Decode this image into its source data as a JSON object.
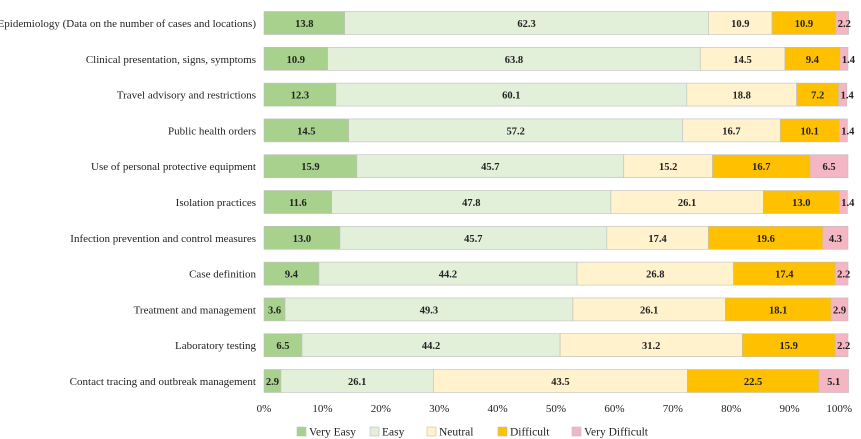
{
  "chart_data": {
    "type": "bar",
    "orientation": "horizontal",
    "stacked": true,
    "percent_stacked": true,
    "title": "",
    "xlabel": "",
    "ylabel": "",
    "xlim": [
      0,
      100
    ],
    "x_ticks": [
      "0%",
      "10%",
      "20%",
      "30%",
      "40%",
      "50%",
      "60%",
      "70%",
      "80%",
      "90%",
      "100%"
    ],
    "grid": false,
    "legend_position": "bottom",
    "categories": [
      "Epidemiology (Data on the number of cases and locations)",
      "Clinical presentation, signs, symptoms",
      "Travel advisory and restrictions",
      "Public health orders",
      "Use of personal protective equipment",
      "Isolation practices",
      "Infection prevention and control measures",
      "Case definition",
      "Treatment and management",
      "Laboratory testing",
      "Contact tracing and outbreak management"
    ],
    "series": [
      {
        "name": "Very Easy",
        "color": "#a9d18e",
        "values": [
          13.8,
          10.9,
          12.3,
          14.5,
          15.9,
          11.6,
          13.0,
          9.4,
          3.6,
          6.5,
          2.9
        ]
      },
      {
        "name": "Easy",
        "color": "#e2efd9",
        "values": [
          62.3,
          63.8,
          60.1,
          57.2,
          45.7,
          47.8,
          45.7,
          44.2,
          49.3,
          44.2,
          26.1
        ]
      },
      {
        "name": "Neutral",
        "color": "#fff2cc",
        "values": [
          10.9,
          14.5,
          18.8,
          16.7,
          15.2,
          26.1,
          17.4,
          26.8,
          26.1,
          31.2,
          43.5
        ]
      },
      {
        "name": "Difficult",
        "color": "#ffc000",
        "values": [
          10.9,
          9.4,
          7.2,
          10.1,
          16.7,
          13.0,
          19.6,
          17.4,
          18.1,
          15.9,
          22.5
        ]
      },
      {
        "name": "Very Difficult",
        "color": "#f4b6c2",
        "values": [
          2.2,
          1.4,
          1.4,
          1.4,
          6.5,
          1.4,
          4.3,
          2.2,
          2.9,
          2.2,
          5.1
        ]
      }
    ],
    "data_labels": [
      [
        "13.8",
        "62.3",
        "10.9",
        "10.9",
        "2.2"
      ],
      [
        "10.9",
        "63.8",
        "14.5",
        "9.4",
        "1.4"
      ],
      [
        "12.3",
        "60.1",
        "18.8",
        "7.2",
        "1.4"
      ],
      [
        "14.5",
        "57.2",
        "16.7",
        "10.1",
        "1.4"
      ],
      [
        "15.9",
        "45.7",
        "15.2",
        "16.7",
        "6.5"
      ],
      [
        "11.6",
        "47.8",
        "26.1",
        "13.0",
        "1.4"
      ],
      [
        "13.0",
        "45.7",
        "17.4",
        "19.6",
        "4.3"
      ],
      [
        "9.4",
        "44.2",
        "26.8",
        "17.4",
        "2.2"
      ],
      [
        "3.6",
        "49.3",
        "26.1",
        "18.1",
        "2.9"
      ],
      [
        "6.5",
        "44.2",
        "31.2",
        "15.9",
        "2.2"
      ],
      [
        "2.9",
        "26.1",
        "43.5",
        "22.5",
        "5.1"
      ]
    ]
  }
}
